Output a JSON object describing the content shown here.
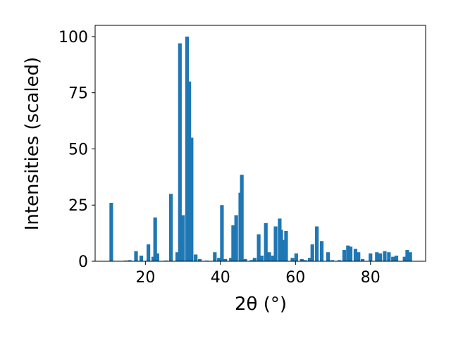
{
  "chart_data": {
    "type": "bar",
    "xlabel": "2θ (°)",
    "ylabel": "Intensities (scaled)",
    "color": "#1f77b4",
    "x": [
      10.9,
      14.7,
      15.8,
      17.5,
      18.9,
      20.8,
      22.1,
      22.6,
      23.2,
      25.5,
      26.8,
      28.5,
      29.2,
      30,
      31.1,
      31.7,
      32.3,
      33.4,
      34.5,
      36.4,
      38.5,
      39.6,
      40.4,
      41.3,
      42.8,
      43.4,
      44.2,
      45.3,
      45.7,
      46.6,
      48.3,
      49.1,
      50.2,
      51,
      52.1,
      53,
      54,
      54.7,
      55.8,
      56.2,
      56.8,
      57.5,
      59.2,
      60.2,
      61.7,
      62.6,
      63.8,
      64.5,
      65.7,
      67,
      68.7,
      69.8,
      71.7,
      73,
      74,
      74.7,
      76,
      76.8,
      77.9,
      80,
      81.7,
      82.6,
      83.8,
      84.9,
      86,
      86.9,
      89.1,
      89.8,
      90.6
    ],
    "values": [
      26,
      0.3,
      0.5,
      4.5,
      2.5,
      7.5,
      2,
      19.5,
      3.5,
      0.3,
      30,
      4,
      97,
      20.5,
      100,
      80,
      55,
      3,
      1,
      0.3,
      4,
      1.5,
      25,
      1,
      1.5,
      16,
      20.5,
      30.5,
      38.5,
      1,
      0.5,
      1.5,
      12,
      2.5,
      17,
      4,
      2.5,
      15.5,
      19,
      14,
      9.5,
      13.5,
      1.5,
      3.5,
      1,
      0.5,
      1.5,
      7.5,
      15.5,
      9,
      4,
      0.5,
      0.5,
      5,
      7,
      6.5,
      5.5,
      4,
      1,
      3.5,
      4,
      3.5,
      4.5,
      4,
      2,
      2.5,
      2,
      5,
      4
    ],
    "xlim": [
      6.6,
      94.7
    ],
    "ylim": [
      0,
      105
    ],
    "xticks": [
      20,
      40,
      60,
      80
    ],
    "yticks": [
      0,
      25,
      50,
      75,
      100
    ]
  }
}
